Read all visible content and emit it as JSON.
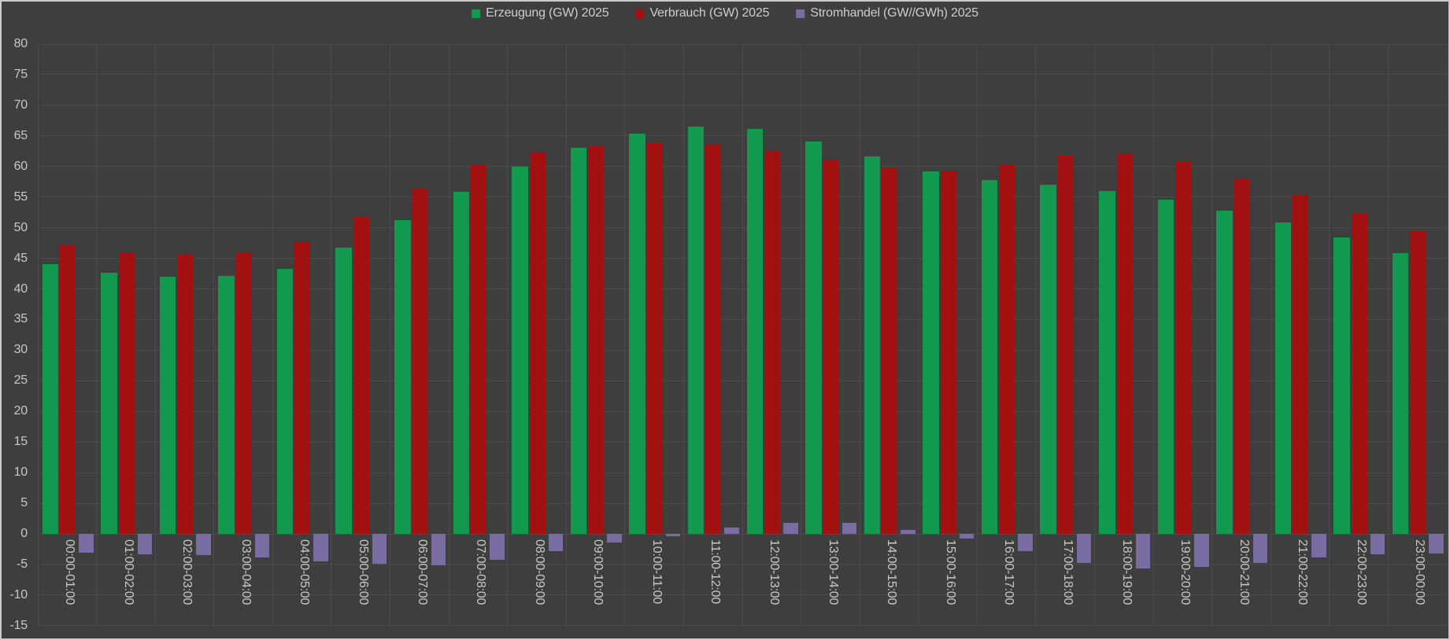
{
  "legend": {
    "items": [
      {
        "label": "Erzeugung (GW) 2025",
        "color": "#119a4d"
      },
      {
        "label": "Verbrauch (GW) 2025",
        "color": "#a31010"
      },
      {
        "label": "Stromhandel (GW//GWh) 2025",
        "color": "#7a6ca2"
      }
    ]
  },
  "chart_data": {
    "type": "bar",
    "title": "",
    "xlabel": "",
    "ylabel": "",
    "ylim": [
      -15,
      80
    ],
    "ytick_step": 5,
    "yticks": [
      80,
      75,
      70,
      65,
      60,
      55,
      50,
      45,
      40,
      35,
      30,
      25,
      20,
      15,
      10,
      5,
      0,
      -5,
      -10,
      -15
    ],
    "grid": true,
    "legend_position": "top-center",
    "background_color": "#3e3e3e",
    "grid_color": "#4c4c4c",
    "text_color": "#c8c8c8",
    "categories": [
      "00:00-01:00",
      "01:00-02:00",
      "02:00-03:00",
      "03:00-04:00",
      "04:00-05:00",
      "05:00-06:00",
      "06:00-07:00",
      "07:00-08:00",
      "08:00-09:00",
      "09:00-10:00",
      "10:00-11:00",
      "11:00-12:00",
      "12:00-13:00",
      "13:00-14:00",
      "14:00-15:00",
      "15:00-16:00",
      "16:00-17:00",
      "17:00-18:00",
      "18:00-19:00",
      "19:00-20:00",
      "20:00-21:00",
      "21:00-22:00",
      "22:00-23:00",
      "23:00-00:00"
    ],
    "series": [
      {
        "name": "Erzeugung (GW) 2025",
        "color": "#119a4d",
        "values": [
          44.0,
          42.6,
          42.0,
          42.1,
          43.3,
          46.7,
          51.2,
          55.8,
          60.0,
          63.0,
          65.4,
          66.5,
          66.1,
          64.1,
          61.7,
          59.2,
          57.8,
          57.0,
          56.0,
          54.6,
          52.8,
          50.8,
          48.4,
          45.9
        ]
      },
      {
        "name": "Verbrauch (GW) 2025",
        "color": "#a31010",
        "values": [
          47.3,
          45.9,
          45.6,
          45.9,
          47.8,
          51.8,
          56.5,
          60.3,
          62.4,
          63.4,
          63.8,
          63.6,
          62.5,
          61.0,
          59.8,
          59.3,
          60.4,
          61.8,
          62.2,
          60.7,
          58.1,
          55.4,
          52.4,
          49.5
        ]
      },
      {
        "name": "Stromhandel (GW//GWh) 2025",
        "color": "#7a6ca2",
        "values": [
          -3.1,
          -3.3,
          -3.5,
          -3.9,
          -4.5,
          -4.9,
          -5.1,
          -4.3,
          -2.8,
          -1.4,
          -0.4,
          1.0,
          1.8,
          1.8,
          0.7,
          -0.8,
          -2.8,
          -4.7,
          -5.6,
          -5.4,
          -4.8,
          -3.8,
          -3.4,
          -3.2
        ]
      }
    ]
  }
}
